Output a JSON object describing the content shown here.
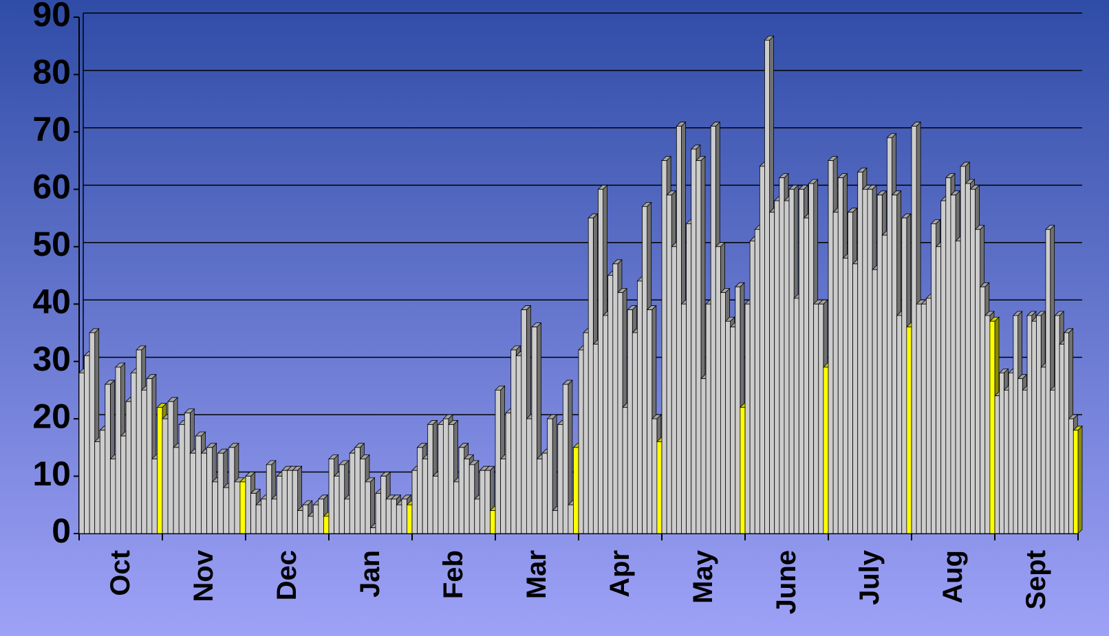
{
  "chart_data": {
    "type": "bar",
    "ylim": [
      0,
      90
    ],
    "yticks": [
      0,
      10,
      20,
      30,
      40,
      50,
      60,
      70,
      80,
      90
    ],
    "grid": true,
    "colors": {
      "bar": "#cccccc",
      "last": "#ffff00"
    },
    "groups": [
      {
        "name": "Oct",
        "values": [
          28,
          31,
          35,
          16,
          18,
          26,
          13,
          29,
          17,
          23,
          28,
          32,
          25,
          27,
          13,
          22
        ]
      },
      {
        "name": "Nov",
        "values": [
          20,
          23,
          15,
          19,
          21,
          14,
          17,
          14,
          15,
          9,
          14,
          8,
          15,
          9,
          9
        ]
      },
      {
        "name": "Dec",
        "values": [
          10,
          7,
          5,
          6,
          12,
          6,
          10,
          11,
          11,
          11,
          4,
          5,
          3,
          5,
          6,
          3
        ]
      },
      {
        "name": "Jan",
        "values": [
          13,
          10,
          12,
          6,
          14,
          15,
          13,
          9,
          1,
          7,
          10,
          6,
          6,
          5,
          6,
          5
        ]
      },
      {
        "name": "Feb",
        "values": [
          11,
          15,
          13,
          19,
          10,
          19,
          20,
          19,
          9,
          15,
          13,
          12,
          6,
          11,
          11,
          4
        ]
      },
      {
        "name": "Mar",
        "values": [
          25,
          13,
          21,
          32,
          31,
          39,
          20,
          36,
          13,
          14,
          20,
          4,
          19,
          26,
          5,
          15
        ]
      },
      {
        "name": "Apr",
        "values": [
          32,
          35,
          55,
          33,
          60,
          38,
          45,
          47,
          42,
          22,
          39,
          35,
          44,
          57,
          39,
          20,
          16
        ]
      },
      {
        "name": "May",
        "values": [
          65,
          59,
          50,
          71,
          40,
          54,
          67,
          65,
          27,
          40,
          71,
          50,
          42,
          37,
          36,
          43,
          22
        ]
      },
      {
        "name": "June",
        "values": [
          40,
          51,
          53,
          64,
          86,
          56,
          58,
          62,
          58,
          60,
          41,
          60,
          55,
          61,
          40,
          40,
          29
        ]
      },
      {
        "name": "July",
        "values": [
          65,
          56,
          62,
          48,
          56,
          47,
          63,
          60,
          60,
          46,
          59,
          52,
          69,
          59,
          38,
          55,
          36
        ]
      },
      {
        "name": "Aug",
        "values": [
          71,
          40,
          40,
          41,
          54,
          50,
          58,
          62,
          59,
          51,
          64,
          61,
          60,
          53,
          43,
          38,
          37
        ]
      },
      {
        "name": "Sept",
        "values": [
          24,
          28,
          25,
          28,
          38,
          27,
          25,
          38,
          37,
          38,
          29,
          53,
          25,
          38,
          33,
          35,
          20,
          18
        ]
      }
    ]
  }
}
